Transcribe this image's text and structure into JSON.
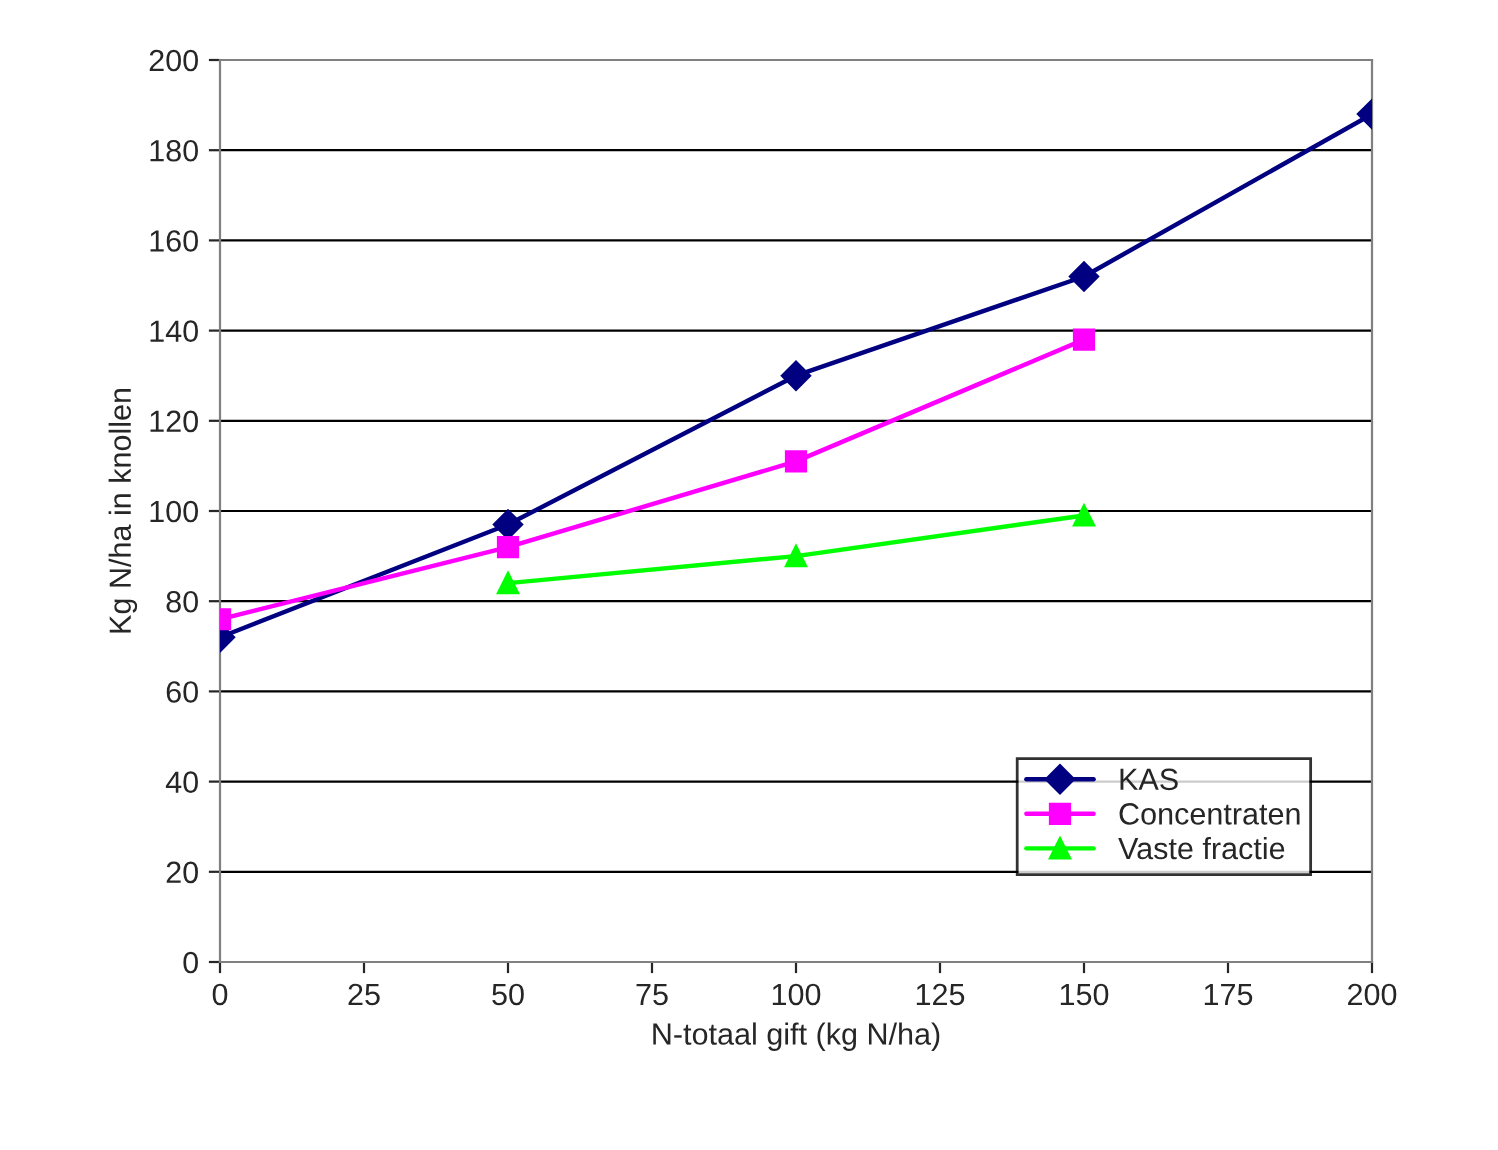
{
  "chart_data": {
    "type": "line",
    "xlabel": "N-totaal gift (kg N/ha)",
    "ylabel": "Kg N/ha in knollen",
    "series": [
      {
        "name": "KAS",
        "color": "#000080",
        "marker": "diamond",
        "x": [
          0,
          50,
          100,
          150,
          200
        ],
        "values": [
          72,
          97,
          130,
          152,
          188
        ]
      },
      {
        "name": "Concentraten",
        "color": "#ff00ff",
        "marker": "square",
        "x": [
          0,
          50,
          100,
          150
        ],
        "values": [
          76,
          92,
          111,
          138
        ]
      },
      {
        "name": "Vaste fractie",
        "color": "#00ff00",
        "marker": "triangle",
        "x": [
          50,
          100,
          150
        ],
        "values": [
          84,
          90,
          99
        ]
      }
    ],
    "xlim": [
      0,
      200
    ],
    "xticks": [
      0,
      25,
      50,
      75,
      100,
      125,
      150,
      175,
      200
    ],
    "ylim": [
      0,
      200
    ],
    "yticks": [
      0,
      20,
      40,
      60,
      80,
      100,
      120,
      140,
      160,
      180,
      200
    ],
    "grid": "y",
    "legend": "bottom right",
    "line_style": "solid"
  }
}
